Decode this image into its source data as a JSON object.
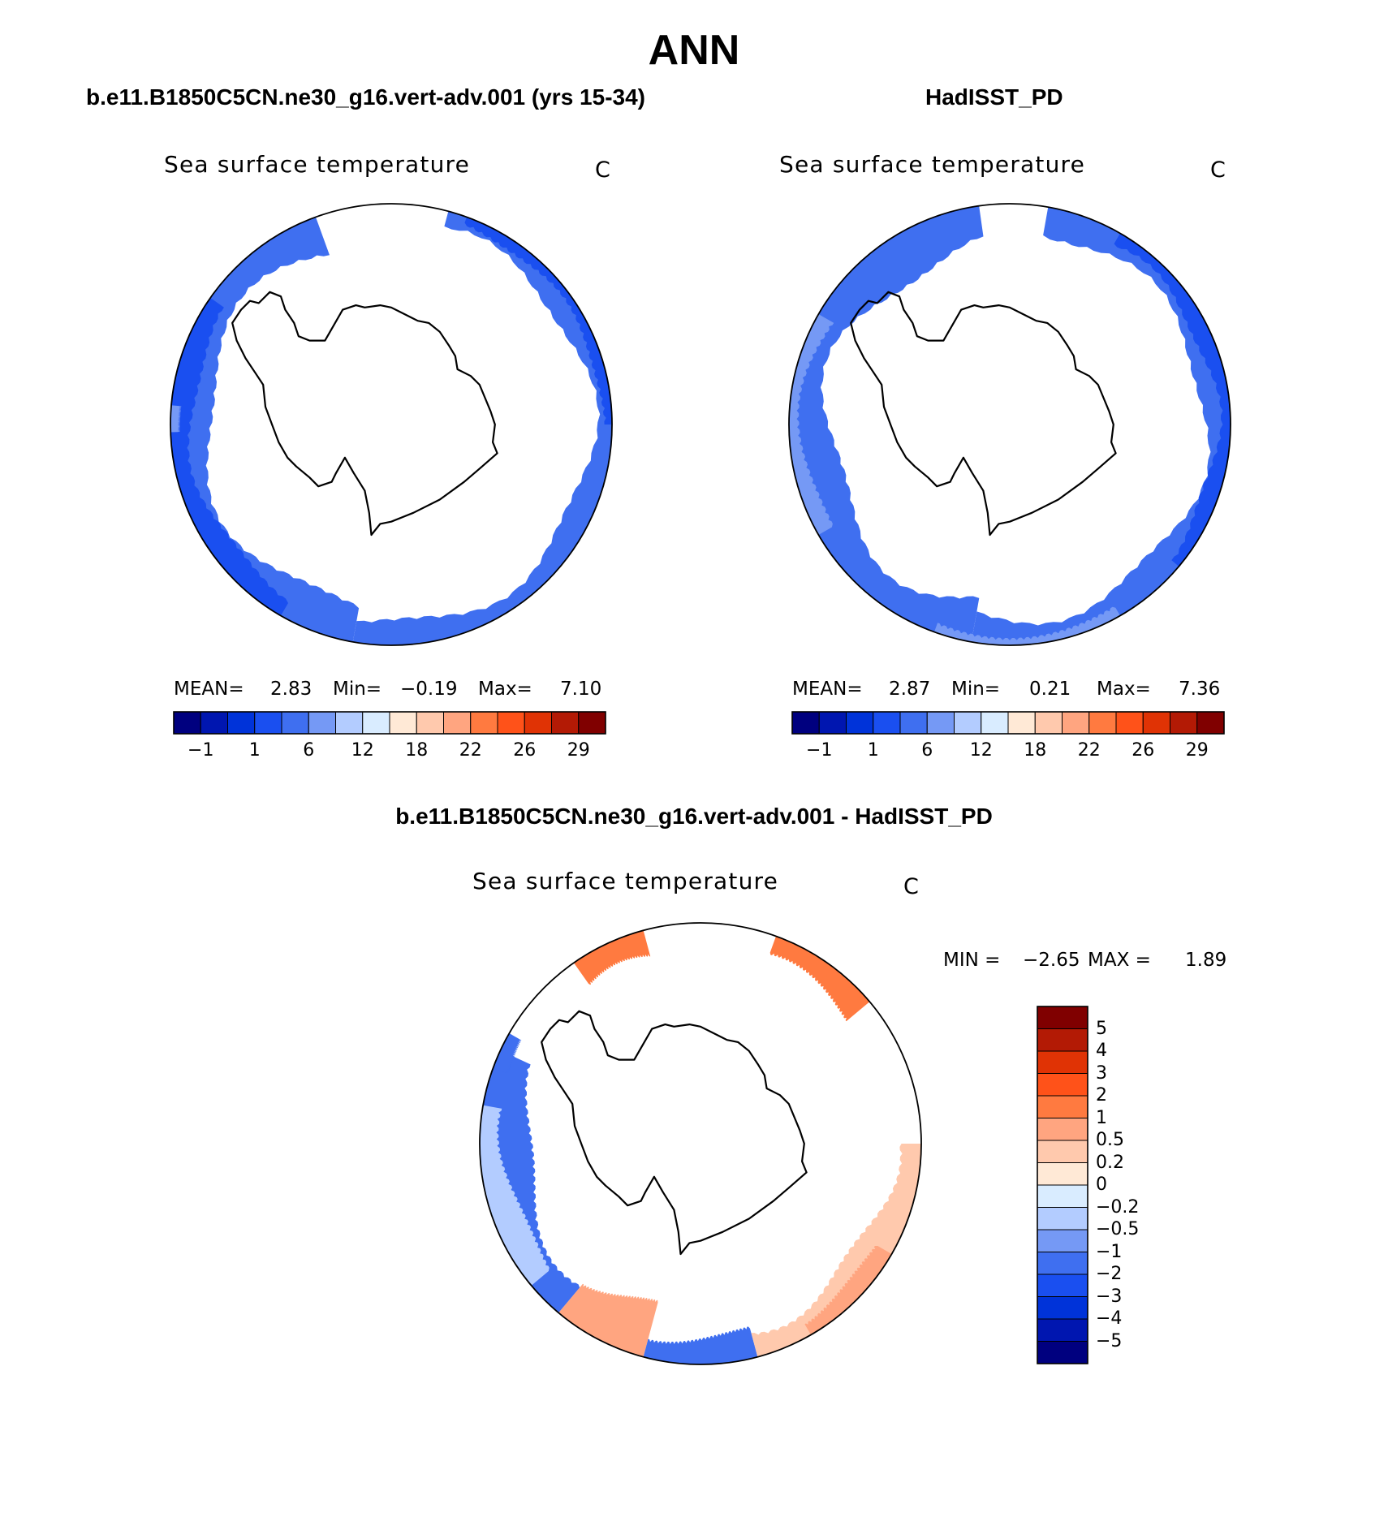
{
  "page": {
    "title": "ANN",
    "colors": {
      "land": "#ffffff",
      "outline": "#000000"
    }
  },
  "panels": [
    {
      "id": "model",
      "case_title": "b.e11.B1850C5CN.ne30_g16.vert-adv.001 (yrs 15-34)",
      "field_title": "Sea surface temperature",
      "units": "C",
      "stats": {
        "mean_label": "MEAN=",
        "mean": "2.83",
        "min_label": "Min=",
        "min": "−0.19",
        "max_label": "Max=",
        "max": "7.10"
      },
      "colorbar_ticks": [
        "−1",
        "1",
        "6",
        "12",
        "18",
        "22",
        "26",
        "29"
      ]
    },
    {
      "id": "obs",
      "case_title": "HadISST_PD",
      "field_title": "Sea surface temperature",
      "units": "C",
      "stats": {
        "mean_label": "MEAN=",
        "mean": "2.87",
        "min_label": "Min=",
        "min": "0.21",
        "max_label": "Max=",
        "max": "7.36"
      },
      "colorbar_ticks": [
        "−1",
        "1",
        "6",
        "12",
        "18",
        "22",
        "26",
        "29"
      ]
    }
  ],
  "diff_panel": {
    "case_title": "b.e11.B1850C5CN.ne30_g16.vert-adv.001 - HadISST_PD",
    "field_title": "Sea surface temperature",
    "units": "C",
    "stats": {
      "min_label": "MIN =",
      "min": "−2.65",
      "max_label": "MAX =",
      "max": "1.89"
    },
    "colorbar_ticks": [
      "5",
      "4",
      "3",
      "2",
      "1",
      "0.5",
      "0.2",
      "0",
      "−0.2",
      "−0.5",
      "−1",
      "−2",
      "−3",
      "−4",
      "−5"
    ]
  },
  "colormaps": {
    "horizontal": [
      "#00007f",
      "#0016b0",
      "#0033d9",
      "#1a4ff0",
      "#3f6ff0",
      "#7599f5",
      "#b3ccff",
      "#d9ecff",
      "#ffe9d6",
      "#ffc9ad",
      "#ffa580",
      "#ff7a40",
      "#ff5219",
      "#e03305",
      "#b31a05",
      "#800000"
    ],
    "vertical": [
      "#800000",
      "#b31a05",
      "#e03305",
      "#ff5219",
      "#ff7a40",
      "#ffa580",
      "#ffc9ad",
      "#ffe9d6",
      "#d9ecff",
      "#b3ccff",
      "#7599f5",
      "#3f6ff0",
      "#1a4ff0",
      "#0033d9",
      "#0016b0",
      "#00007f"
    ]
  }
}
